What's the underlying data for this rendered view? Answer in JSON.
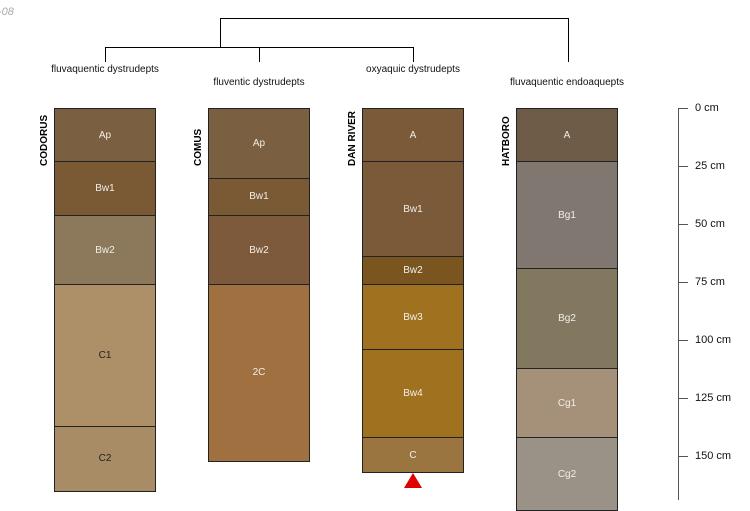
{
  "corner_text": "-08",
  "profiles": [
    {
      "name": "CODORUS",
      "taxon": "fluvaquentic dystrudepts",
      "horizons": [
        {
          "name": "Ap",
          "top": 0,
          "bottom": 23,
          "color": "#7a6040",
          "text": "#f2eee8"
        },
        {
          "name": "Bw1",
          "top": 23,
          "bottom": 46,
          "color": "#7a5a35",
          "text": "#f2eee8"
        },
        {
          "name": "Bw2",
          "top": 46,
          "bottom": 76,
          "color": "#8c785a",
          "text": "#f2eee8"
        },
        {
          "name": "C1",
          "top": 76,
          "bottom": 137,
          "color": "#ad9068",
          "text": "#222222"
        },
        {
          "name": "C2",
          "top": 137,
          "bottom": 165,
          "color": "#a88c66",
          "text": "#222222"
        }
      ]
    },
    {
      "name": "COMUS",
      "taxon": "fluventic dystrudepts",
      "horizons": [
        {
          "name": "Ap",
          "top": 0,
          "bottom": 30,
          "color": "#7a6040",
          "text": "#f2eee8"
        },
        {
          "name": "Bw1",
          "top": 30,
          "bottom": 46,
          "color": "#7a5a35",
          "text": "#f2eee8"
        },
        {
          "name": "Bw2",
          "top": 46,
          "bottom": 76,
          "color": "#7d5a3b",
          "text": "#f2eee8"
        },
        {
          "name": "2C",
          "top": 76,
          "bottom": 152,
          "color": "#a07040",
          "text": "#f2eee8"
        }
      ]
    },
    {
      "name": "DAN RIVER",
      "taxon": "oxyaquic dystrudepts",
      "marker": true,
      "horizons": [
        {
          "name": "A",
          "top": 0,
          "bottom": 23,
          "color": "#7a5a38",
          "text": "#f2eee8"
        },
        {
          "name": "Bw1",
          "top": 23,
          "bottom": 64,
          "color": "#7a5a38",
          "text": "#f2eee8"
        },
        {
          "name": "Bw2",
          "top": 64,
          "bottom": 76,
          "color": "#7a5520",
          "text": "#f2eee8"
        },
        {
          "name": "Bw3",
          "top": 76,
          "bottom": 104,
          "color": "#a0721f",
          "text": "#f2eee8"
        },
        {
          "name": "Bw4",
          "top": 104,
          "bottom": 142,
          "color": "#a0721f",
          "text": "#f2eee8"
        },
        {
          "name": "C",
          "top": 142,
          "bottom": 157,
          "color": "#9a7540",
          "text": "#f2eee8"
        }
      ]
    },
    {
      "name": "HATBORO",
      "taxon": "fluvaquentic endoaquepts",
      "horizons": [
        {
          "name": "A",
          "top": 0,
          "bottom": 23,
          "color": "#6e5c48",
          "text": "#f2eee8"
        },
        {
          "name": "Bg1",
          "top": 23,
          "bottom": 69,
          "color": "#807870",
          "text": "#f2eee8"
        },
        {
          "name": "Bg2",
          "top": 69,
          "bottom": 112,
          "color": "#827860",
          "text": "#f2eee8"
        },
        {
          "name": "Cg1",
          "top": 112,
          "bottom": 142,
          "color": "#a5917a",
          "text": "#f2eee8"
        },
        {
          "name": "Cg2",
          "top": 142,
          "bottom": 180,
          "color": "#9a9286",
          "text": "#f2eee8"
        }
      ]
    }
  ],
  "depth_axis": {
    "ticks": [
      0,
      25,
      50,
      75,
      100,
      125,
      150
    ],
    "labels": [
      "0 cm",
      "25 cm",
      "50 cm",
      "75 cm",
      "100 cm",
      "125 cm",
      "150 cm"
    ]
  },
  "marker_color": "#e00000"
}
